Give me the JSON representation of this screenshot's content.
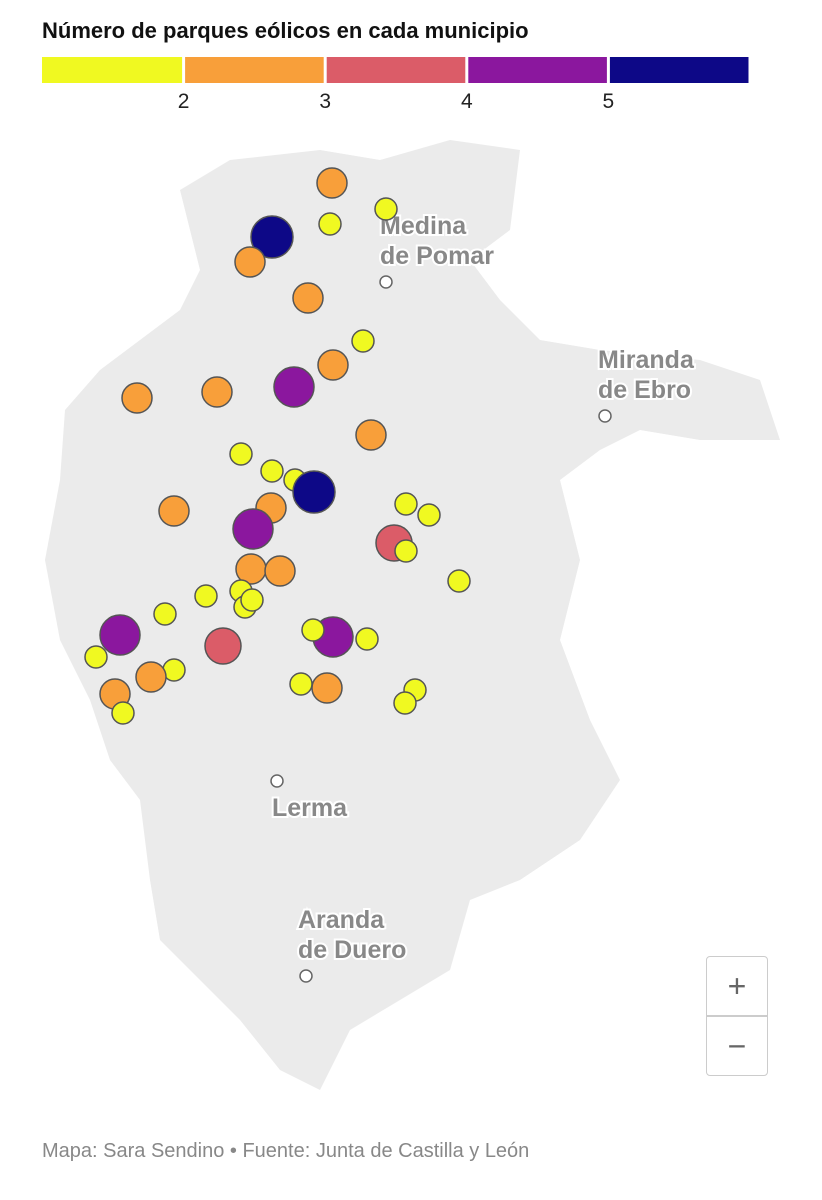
{
  "title": "Número de parques eólicos en cada municipio",
  "legend": {
    "colors": [
      "#f0f921",
      "#f89f3a",
      "#db5c68",
      "#8b179e",
      "#0d0887"
    ],
    "ticks": [
      2,
      3,
      4,
      5
    ]
  },
  "markers": {
    "values": [
      2,
      1,
      1,
      5,
      2,
      2,
      1,
      2,
      4,
      2,
      2,
      2,
      1,
      1,
      1,
      5,
      1,
      1,
      2,
      2,
      4,
      3,
      1,
      2,
      2,
      1,
      1,
      1,
      1,
      1,
      1,
      4,
      4,
      1,
      1,
      3,
      1,
      1,
      2,
      1,
      2,
      1,
      1,
      2,
      1
    ]
  },
  "places": [
    {
      "lines": [
        "Medina",
        "de Pomar"
      ]
    },
    {
      "lines": [
        "Miranda",
        "de Ebro"
      ]
    },
    {
      "lines": [
        "Lerma"
      ]
    },
    {
      "lines": [
        "Aranda",
        "de Duero"
      ]
    }
  ],
  "footer": "Mapa: Sara Sendino • Fuente: Junta de Castilla y León",
  "zoom": {
    "in": "+",
    "out": "−"
  }
}
